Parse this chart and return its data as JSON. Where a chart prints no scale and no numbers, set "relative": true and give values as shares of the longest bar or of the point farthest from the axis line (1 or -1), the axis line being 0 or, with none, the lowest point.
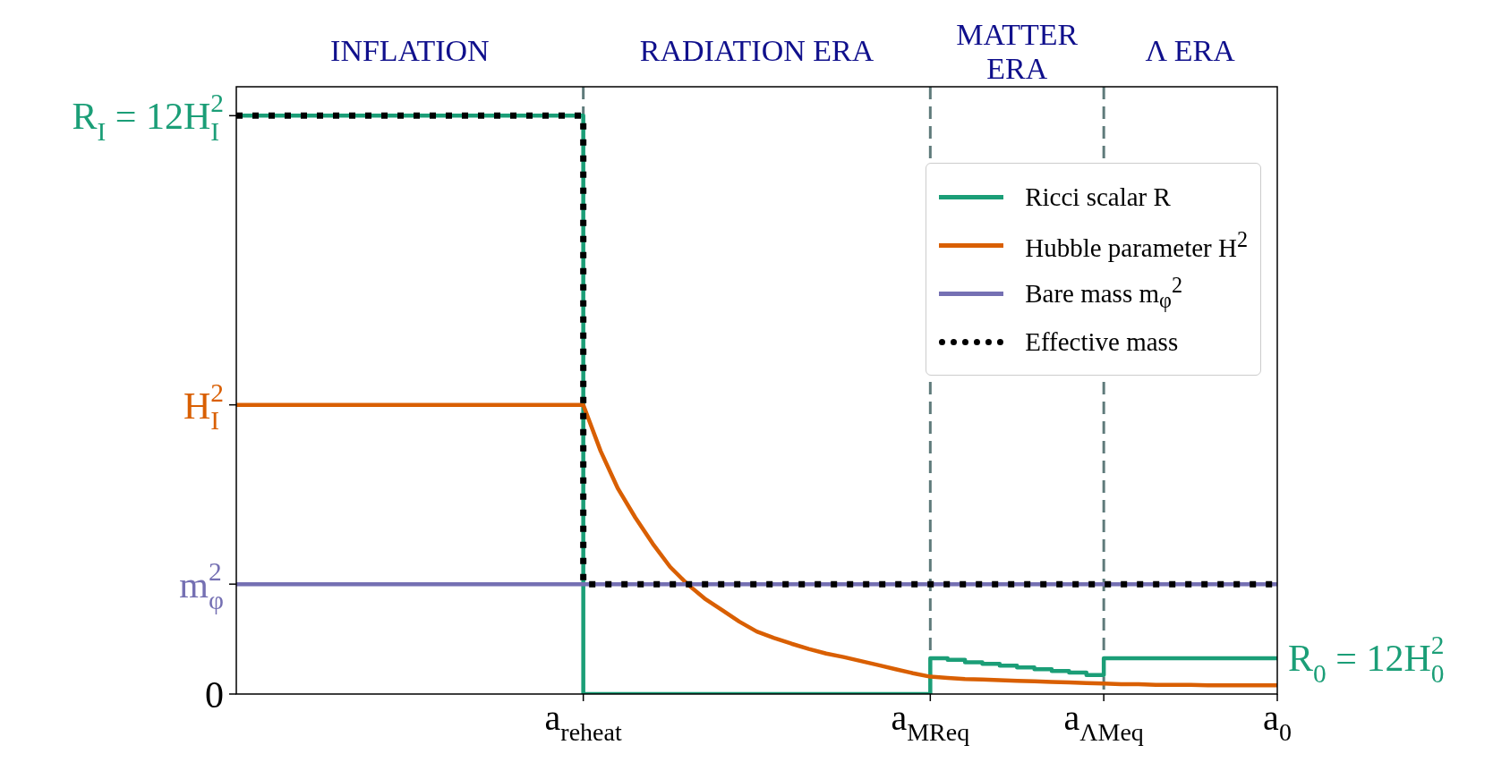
{
  "chart_data": {
    "type": "line",
    "relative": true,
    "categories": [
      null,
      null,
      null,
      null,
      null,
      null,
      null,
      null,
      null,
      null,
      null,
      null,
      null,
      null,
      null,
      null,
      null,
      null,
      null,
      null,
      "a$_{reheat}$",
      null,
      null,
      null,
      null,
      null,
      null,
      null,
      null,
      null,
      null,
      null,
      null,
      null,
      null,
      null,
      null,
      null,
      null,
      null,
      "a$_{MReq}$",
      null,
      null,
      null,
      null,
      null,
      null,
      null,
      null,
      null,
      "a$_{ΛMeq}$",
      null,
      null,
      null,
      null,
      null,
      null,
      null,
      null,
      null,
      "a$_{0}$"
    ],
    "grid": false,
    "legend": "top right",
    "marker": "none",
    "series": [
      {
        "name": "Ricci scalar R",
        "color": "#1b9e77",
        "type": "step",
        "line_style": "solid",
        "values": [
          1,
          1,
          1,
          1,
          1,
          1,
          1,
          1,
          1,
          1,
          1,
          1,
          1,
          1,
          1,
          1,
          1,
          1,
          1,
          1,
          0,
          0,
          0,
          0,
          0,
          0,
          0,
          0,
          0,
          0,
          0,
          0,
          0,
          0,
          0,
          0,
          0,
          0,
          0,
          0,
          0.062,
          0.059,
          0.055,
          0.052,
          0.049,
          0.046,
          0.043,
          0.04,
          0.037,
          0.033,
          0.062,
          0.062,
          0.062,
          0.062,
          0.062,
          0.062,
          0.062,
          0.062,
          0.062,
          0.062,
          0.062
        ]
      },
      {
        "name": "Hubble parameter H$^{2}$",
        "color": "#d95f02",
        "line_style": "solid",
        "values": [
          0.5,
          0.5,
          0.5,
          0.5,
          0.5,
          0.5,
          0.5,
          0.5,
          0.5,
          0.5,
          0.5,
          0.5,
          0.5,
          0.5,
          0.5,
          0.5,
          0.5,
          0.5,
          0.5,
          0.5,
          0.5,
          0.42,
          0.355,
          0.305,
          0.26,
          0.22,
          0.19,
          0.165,
          0.145,
          0.125,
          0.108,
          0.097,
          0.087,
          0.078,
          0.07,
          0.064,
          0.057,
          0.05,
          0.043,
          0.036,
          0.03,
          0.028,
          0.026,
          0.025,
          0.024,
          0.023,
          0.022,
          0.021,
          0.02,
          0.019,
          0.018,
          0.017,
          0.017,
          0.016,
          0.016,
          0.016,
          0.015,
          0.015,
          0.015,
          0.015,
          0.015
        ]
      },
      {
        "name": "Bare mass m$_{φ}$$^{2}$",
        "color": "#7570b3",
        "line_style": "solid",
        "values": [
          0.19,
          0.19,
          0.19,
          0.19,
          0.19,
          0.19,
          0.19,
          0.19,
          0.19,
          0.19,
          0.19,
          0.19,
          0.19,
          0.19,
          0.19,
          0.19,
          0.19,
          0.19,
          0.19,
          0.19,
          0.19,
          0.19,
          0.19,
          0.19,
          0.19,
          0.19,
          0.19,
          0.19,
          0.19,
          0.19,
          0.19,
          0.19,
          0.19,
          0.19,
          0.19,
          0.19,
          0.19,
          0.19,
          0.19,
          0.19,
          0.19,
          0.19,
          0.19,
          0.19,
          0.19,
          0.19,
          0.19,
          0.19,
          0.19,
          0.19,
          0.19,
          0.19,
          0.19,
          0.19,
          0.19,
          0.19,
          0.19,
          0.19,
          0.19,
          0.19,
          0.19
        ]
      },
      {
        "name": "Effective mass",
        "color": "#000000",
        "type": "step",
        "line_style": "dotted",
        "values": [
          1,
          1,
          1,
          1,
          1,
          1,
          1,
          1,
          1,
          1,
          1,
          1,
          1,
          1,
          1,
          1,
          1,
          1,
          1,
          1,
          0.19,
          0.19,
          0.19,
          0.19,
          0.19,
          0.19,
          0.19,
          0.19,
          0.19,
          0.19,
          0.19,
          0.19,
          0.19,
          0.19,
          0.19,
          0.19,
          0.19,
          0.19,
          0.19,
          0.19,
          0.19,
          0.19,
          0.19,
          0.19,
          0.19,
          0.19,
          0.19,
          0.19,
          0.19,
          0.19,
          0.19,
          0.19,
          0.19,
          0.19,
          0.19,
          0.19,
          0.19,
          0.19,
          0.19,
          0.19,
          0.19
        ]
      }
    ],
    "ref_lines": [
      {
        "axis": "x",
        "value": "a$_{reheat}$",
        "color": "#5f7b7b",
        "line_style": "dashed"
      },
      {
        "axis": "x",
        "value": "a$_{MReq}$",
        "color": "#5f7b7b",
        "line_style": "dashed"
      },
      {
        "axis": "x",
        "value": "a$_{ΛMeq}$",
        "color": "#5f7b7b",
        "line_style": "dashed"
      }
    ],
    "annotations": [
      "INFLATION",
      "RADIATION ERA",
      "MATTER ERA",
      "Λ ERA",
      "R$_{I}$ = 12H$_{I}$$^{2}$",
      "H$_{I}$$^{2}$",
      "m$_{φ}$$^{2}$",
      "0",
      {
        "text": "R$_{0}$ = 12H$_{0}$$^{2}$",
        "x": "a$_{0}$",
        "y": 0.062
      }
    ]
  }
}
